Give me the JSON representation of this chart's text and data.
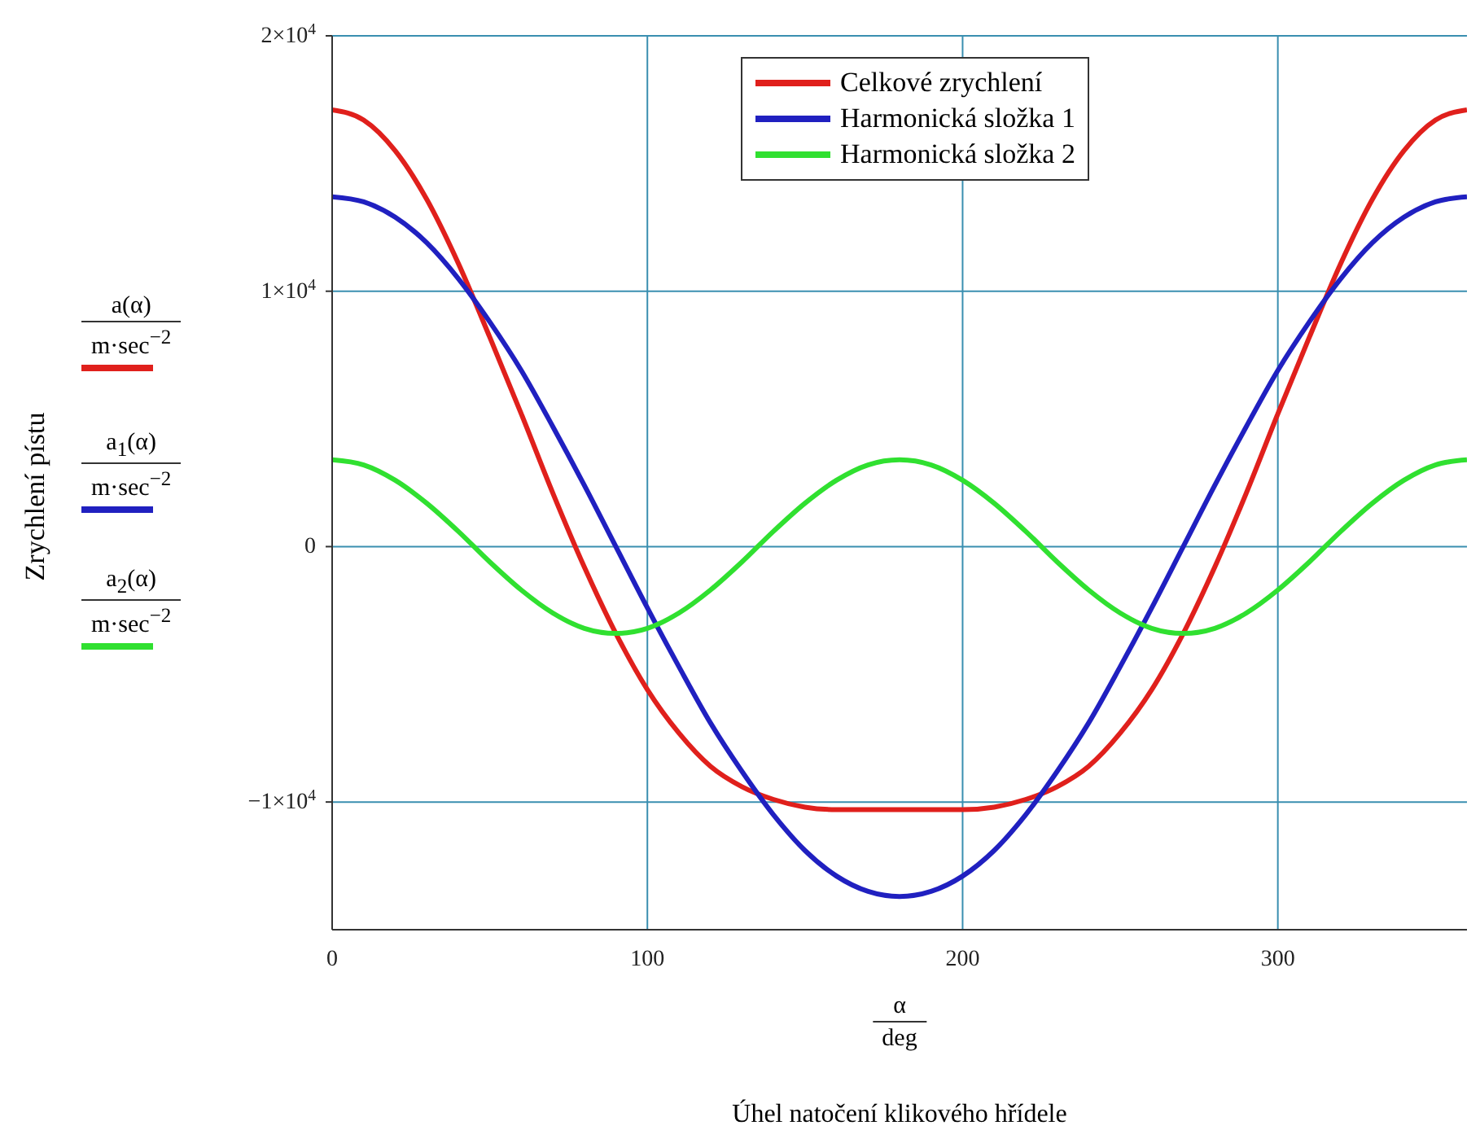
{
  "chart_data": {
    "type": "line",
    "xlabel": "Úhel natočení klikového hřídele",
    "annotations": [
      "Zrychlení pístu",
      "a(α)",
      "m·sec$^{−2}$",
      "a$_{1}$(α)",
      "m·sec$^{−2}$",
      "a$_{2}$(α)",
      "m·sec$^{−2}$",
      "α",
      "deg"
    ],
    "x": [
      0,
      10,
      20,
      30,
      40,
      50,
      60,
      70,
      80,
      90,
      100,
      110,
      120,
      130,
      140,
      150,
      160,
      170,
      180,
      190,
      200,
      210,
      220,
      230,
      240,
      250,
      260,
      270,
      280,
      290,
      300,
      310,
      320,
      330,
      340,
      350,
      360
    ],
    "series": [
      {
        "name": "Celkové zrychlení",
        "color": "#e0201c",
        "values": [
          17100,
          16700,
          15500,
          13600,
          11100,
          8200,
          5200,
          2100,
          -800,
          -3400,
          -5600,
          -7300,
          -8600,
          -9400,
          -9900,
          -10200,
          -10300,
          -10300,
          -10300,
          -10300,
          -10300,
          -10200,
          -9900,
          -9400,
          -8600,
          -7300,
          -5600,
          -3400,
          -800,
          2100,
          5200,
          8200,
          11100,
          13600,
          15500,
          16700,
          17100
        ]
      },
      {
        "name": "Harmonická složka 1",
        "color": "#2020c0",
        "values": [
          13700,
          13500,
          12900,
          11900,
          10500,
          8800,
          6900,
          4700,
          2400,
          0,
          -2400,
          -4700,
          -6900,
          -8800,
          -10500,
          -11900,
          -12900,
          -13500,
          -13700,
          -13500,
          -12900,
          -11900,
          -10500,
          -8800,
          -6900,
          -4700,
          -2400,
          0,
          2400,
          4700,
          6900,
          8800,
          10500,
          11900,
          12900,
          13500,
          13700
        ]
      },
      {
        "name": "Harmonická složka 2",
        "color": "#30e030",
        "values": [
          3400,
          3200,
          2600,
          1700,
          600,
          -600,
          -1700,
          -2600,
          -3200,
          -3400,
          -3200,
          -2600,
          -1700,
          -600,
          600,
          1700,
          2600,
          3200,
          3400,
          3200,
          2600,
          1700,
          600,
          -600,
          -1700,
          -2600,
          -3200,
          -3400,
          -3200,
          -2600,
          -1700,
          -600,
          600,
          1700,
          2600,
          3200,
          3400
        ]
      }
    ],
    "xlim": [
      0,
      360
    ],
    "xticks": [
      0,
      100,
      200,
      300
    ],
    "ylim": [
      -15000,
      20000
    ],
    "yticks": [
      {
        "value": -10000,
        "label": "−1×10$^{4}$"
      },
      {
        "value": 0,
        "label": "0"
      },
      {
        "value": 10000,
        "label": "1×10$^{4}$"
      },
      {
        "value": 20000,
        "label": "2×10$^{4}$"
      }
    ],
    "grid": true,
    "legend": "top",
    "marker": "none",
    "line_style": "solid"
  }
}
